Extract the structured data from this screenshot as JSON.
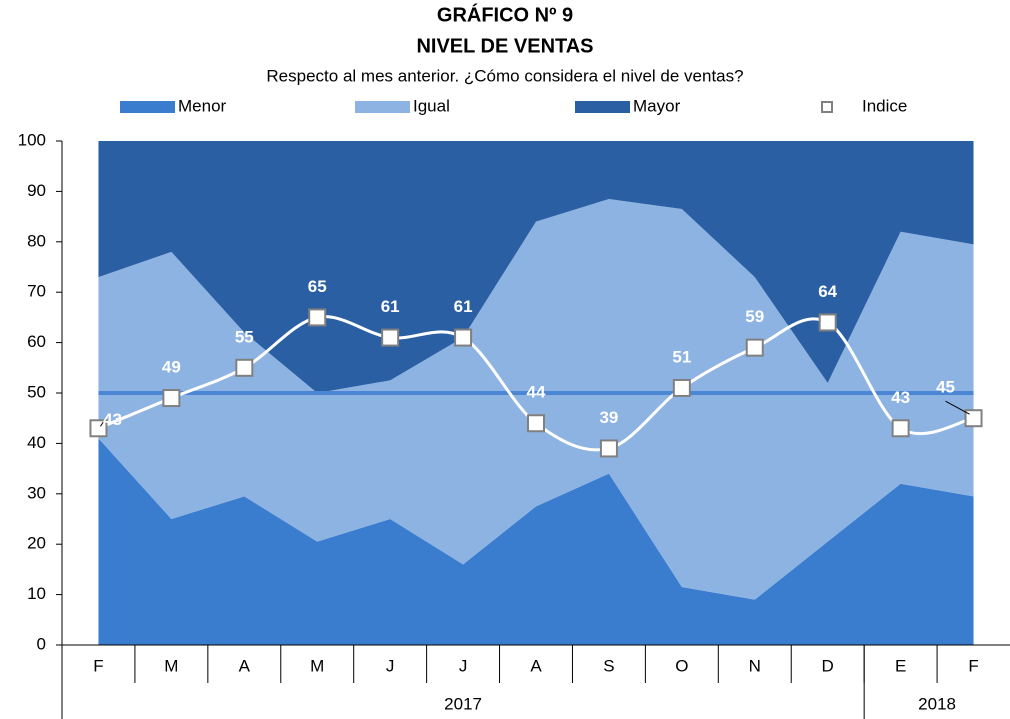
{
  "chart_data": {
    "type": "stacked_area_line",
    "title": "GRÁFICO Nº 9",
    "subtitle": "NIVEL DE VENTAS",
    "caption": "Respecto al mes anterior. ¿Cómo considera el nivel de ventas?",
    "categories": [
      "F",
      "M",
      "A",
      "M",
      "J",
      "J",
      "A",
      "S",
      "O",
      "N",
      "D",
      "E",
      "F"
    ],
    "year_groups": [
      {
        "label": "2017",
        "categories": 11
      },
      {
        "label": "2018",
        "categories": 2
      }
    ],
    "series": [
      {
        "name": "Menor",
        "color": "#3a7dcf",
        "kind": "area",
        "values": [
          41,
          25,
          29.5,
          20.5,
          25,
          16,
          27.5,
          34,
          11.5,
          9,
          20.5,
          32,
          29.5
        ]
      },
      {
        "name": "Igual",
        "color": "#8db3e2",
        "kind": "area",
        "values": [
          32,
          53,
          32.5,
          29.5,
          27.5,
          45,
          56.5,
          54.5,
          75,
          64,
          31.5,
          50,
          50
        ]
      },
      {
        "name": "Mayor",
        "color": "#2b5fa4",
        "kind": "area",
        "values": [
          27,
          22,
          38,
          50,
          47.5,
          39,
          16,
          11.5,
          13.5,
          27,
          48,
          18,
          20.5
        ]
      },
      {
        "name": "Indice",
        "color": "#ffffff",
        "kind": "line",
        "values": [
          43,
          49,
          55,
          65,
          61,
          61,
          44,
          39,
          51,
          59,
          64,
          43,
          45
        ]
      }
    ],
    "reference_line": {
      "value": 50,
      "color": "#4a86d4"
    },
    "ylim": [
      0,
      100
    ],
    "yticks": [
      0,
      10,
      20,
      30,
      40,
      50,
      60,
      70,
      80,
      90,
      100
    ]
  }
}
